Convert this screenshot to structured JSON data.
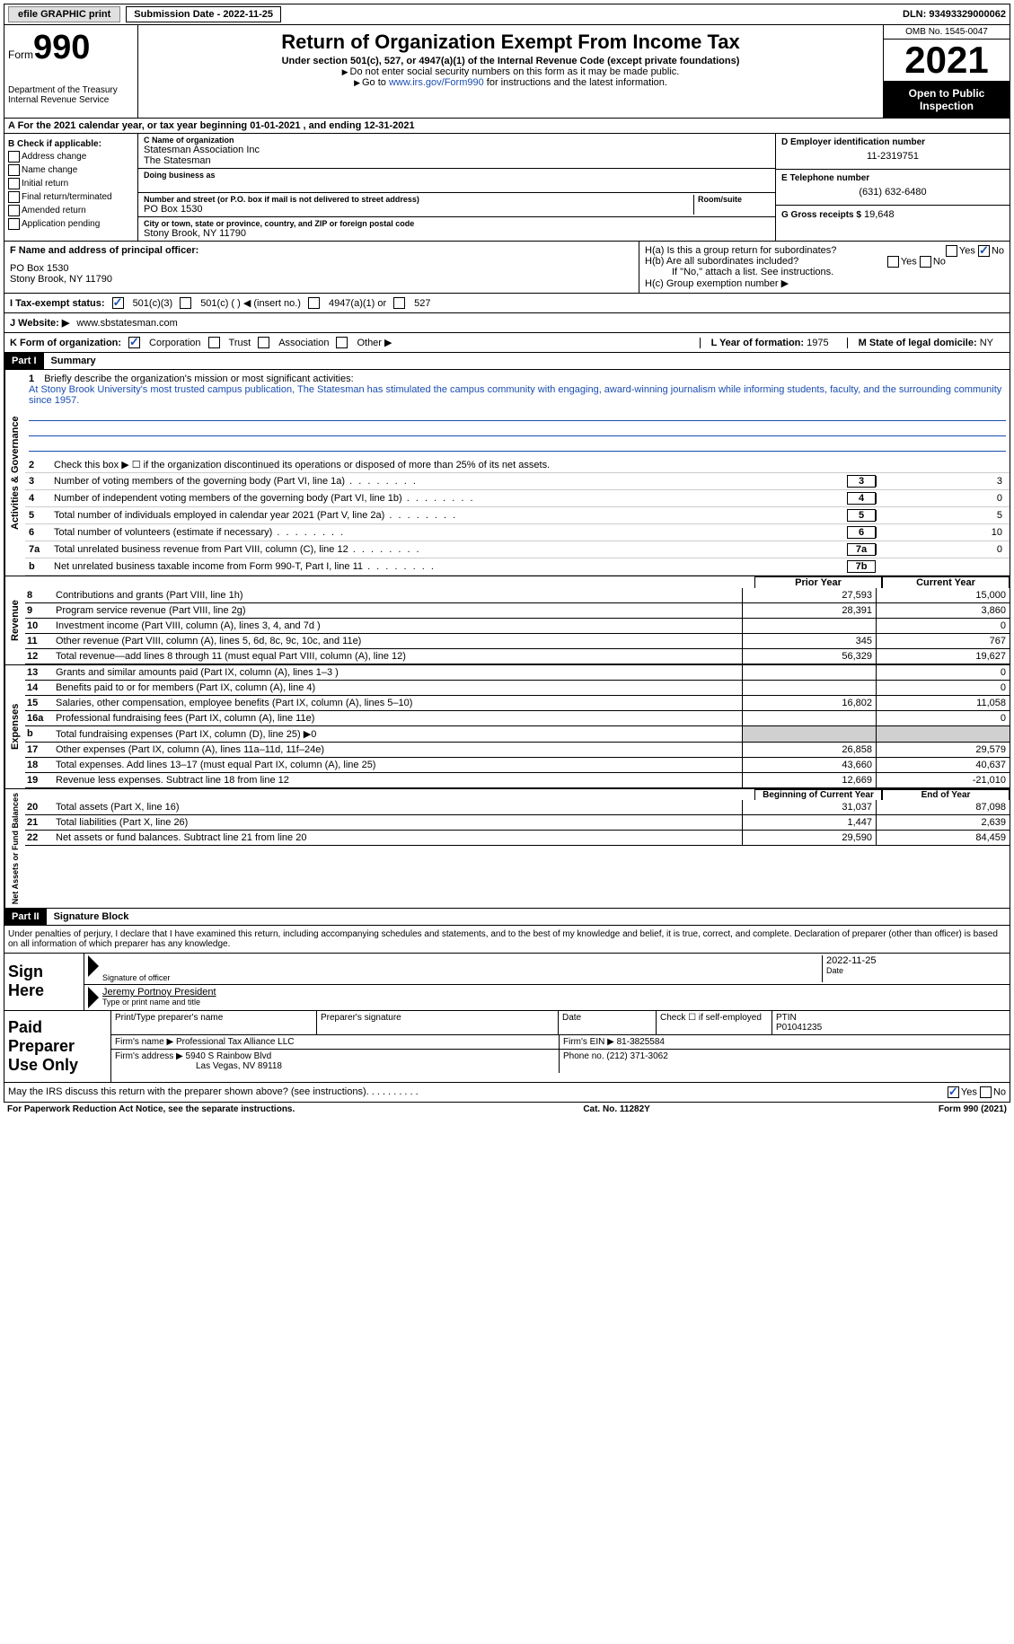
{
  "topbar": {
    "efile": "efile GRAPHIC print",
    "submission": "Submission Date - 2022-11-25",
    "dln": "DLN: 93493329000062"
  },
  "header": {
    "form_label": "Form",
    "form_num": "990",
    "dept": "Department of the Treasury",
    "irs": "Internal Revenue Service",
    "title": "Return of Organization Exempt From Income Tax",
    "subtitle": "Under section 501(c), 527, or 4947(a)(1) of the Internal Revenue Code (except private foundations)",
    "note1": "Do not enter social security numbers on this form as it may be made public.",
    "note2_pre": "Go to ",
    "note2_link": "www.irs.gov/Form990",
    "note2_post": " for instructions and the latest information.",
    "omb": "OMB No. 1545-0047",
    "year": "2021",
    "open": "Open to Public Inspection"
  },
  "section_a": "A For the 2021 calendar year, or tax year beginning 01-01-2021    , and ending 12-31-2021",
  "col_b": {
    "title": "B Check if applicable:",
    "items": [
      "Address change",
      "Name change",
      "Initial return",
      "Final return/terminated",
      "Amended return",
      "Application pending"
    ]
  },
  "col_c": {
    "name_label": "C Name of organization",
    "name1": "Statesman Association Inc",
    "name2": "The Statesman",
    "dba_label": "Doing business as",
    "addr_label": "Number and street (or P.O. box if mail is not delivered to street address)",
    "room_label": "Room/suite",
    "addr": "PO Box 1530",
    "city_label": "City or town, state or province, country, and ZIP or foreign postal code",
    "city": "Stony Brook, NY  11790"
  },
  "col_d": {
    "ein_label": "D Employer identification number",
    "ein": "11-2319751",
    "phone_label": "E Telephone number",
    "phone": "(631) 632-6480",
    "gross_label": "G Gross receipts $",
    "gross": "19,648"
  },
  "f": {
    "label": "F  Name and address of principal officer:",
    "line1": "PO Box 1530",
    "line2": "Stony Brook, NY  11790"
  },
  "h": {
    "ha": "H(a)  Is this a group return for subordinates?",
    "hb": "H(b)  Are all subordinates included?",
    "hb_note": "If \"No,\" attach a list. See instructions.",
    "hc": "H(c)  Group exemption number ▶"
  },
  "tax_status": {
    "label": "I   Tax-exempt status:",
    "opt1": "501(c)(3)",
    "opt2": "501(c) (   ) ◀ (insert no.)",
    "opt3": "4947(a)(1) or",
    "opt4": "527"
  },
  "website": {
    "label": "J  Website: ▶",
    "value": "www.sbstatesman.com"
  },
  "k": {
    "label": "K Form of organization:",
    "opts": [
      "Corporation",
      "Trust",
      "Association",
      "Other ▶"
    ],
    "l_label": "L Year of formation:",
    "l_val": "1975",
    "m_label": "M State of legal domicile:",
    "m_val": "NY"
  },
  "part1": {
    "header": "Part I",
    "title": "Summary"
  },
  "mission": {
    "num": "1",
    "label": "Briefly describe the organization's mission or most significant activities:",
    "text": "At Stony Brook University's most trusted campus publication, The Statesman has stimulated the campus community with engaging, award-winning journalism while informing students, faculty, and the surrounding community since 1957."
  },
  "gov_lines": [
    {
      "num": "2",
      "desc": "Check this box ▶ ☐  if the organization discontinued its operations or disposed of more than 25% of its net assets."
    },
    {
      "num": "3",
      "desc": "Number of voting members of the governing body (Part VI, line 1a)",
      "box": "3",
      "val": "3"
    },
    {
      "num": "4",
      "desc": "Number of independent voting members of the governing body (Part VI, line 1b)",
      "box": "4",
      "val": "0"
    },
    {
      "num": "5",
      "desc": "Total number of individuals employed in calendar year 2021 (Part V, line 2a)",
      "box": "5",
      "val": "5"
    },
    {
      "num": "6",
      "desc": "Total number of volunteers (estimate if necessary)",
      "box": "6",
      "val": "10"
    },
    {
      "num": "7a",
      "desc": "Total unrelated business revenue from Part VIII, column (C), line 12",
      "box": "7a",
      "val": "0"
    },
    {
      "num": "b",
      "desc": "Net unrelated business taxable income from Form 990-T, Part I, line 11",
      "box": "7b",
      "val": ""
    }
  ],
  "col_headers": {
    "prior": "Prior Year",
    "current": "Current Year"
  },
  "revenue": [
    {
      "num": "8",
      "desc": "Contributions and grants (Part VIII, line 1h)",
      "prior": "27,593",
      "current": "15,000"
    },
    {
      "num": "9",
      "desc": "Program service revenue (Part VIII, line 2g)",
      "prior": "28,391",
      "current": "3,860"
    },
    {
      "num": "10",
      "desc": "Investment income (Part VIII, column (A), lines 3, 4, and 7d )",
      "prior": "",
      "current": "0"
    },
    {
      "num": "11",
      "desc": "Other revenue (Part VIII, column (A), lines 5, 6d, 8c, 9c, 10c, and 11e)",
      "prior": "345",
      "current": "767"
    },
    {
      "num": "12",
      "desc": "Total revenue—add lines 8 through 11 (must equal Part VIII, column (A), line 12)",
      "prior": "56,329",
      "current": "19,627"
    }
  ],
  "expenses": [
    {
      "num": "13",
      "desc": "Grants and similar amounts paid (Part IX, column (A), lines 1–3 )",
      "prior": "",
      "current": "0"
    },
    {
      "num": "14",
      "desc": "Benefits paid to or for members (Part IX, column (A), line 4)",
      "prior": "",
      "current": "0"
    },
    {
      "num": "15",
      "desc": "Salaries, other compensation, employee benefits (Part IX, column (A), lines 5–10)",
      "prior": "16,802",
      "current": "11,058"
    },
    {
      "num": "16a",
      "desc": "Professional fundraising fees (Part IX, column (A), line 11e)",
      "prior": "",
      "current": "0"
    },
    {
      "num": "b",
      "desc": "Total fundraising expenses (Part IX, column (D), line 25) ▶0",
      "prior": "gray",
      "current": "gray"
    },
    {
      "num": "17",
      "desc": "Other expenses (Part IX, column (A), lines 11a–11d, 11f–24e)",
      "prior": "26,858",
      "current": "29,579"
    },
    {
      "num": "18",
      "desc": "Total expenses. Add lines 13–17 (must equal Part IX, column (A), line 25)",
      "prior": "43,660",
      "current": "40,637"
    },
    {
      "num": "19",
      "desc": "Revenue less expenses. Subtract line 18 from line 12",
      "prior": "12,669",
      "current": "-21,010"
    }
  ],
  "net_headers": {
    "prior": "Beginning of Current Year",
    "current": "End of Year"
  },
  "net": [
    {
      "num": "20",
      "desc": "Total assets (Part X, line 16)",
      "prior": "31,037",
      "current": "87,098"
    },
    {
      "num": "21",
      "desc": "Total liabilities (Part X, line 26)",
      "prior": "1,447",
      "current": "2,639"
    },
    {
      "num": "22",
      "desc": "Net assets or fund balances. Subtract line 21 from line 20",
      "prior": "29,590",
      "current": "84,459"
    }
  ],
  "part2": {
    "header": "Part II",
    "title": "Signature Block",
    "declaration": "Under penalties of perjury, I declare that I have examined this return, including accompanying schedules and statements, and to the best of my knowledge and belief, it is true, correct, and complete. Declaration of preparer (other than officer) is based on all information of which preparer has any knowledge."
  },
  "sign": {
    "label": "Sign Here",
    "sig_label": "Signature of officer",
    "date": "2022-11-25",
    "date_label": "Date",
    "name": "Jeremy Portnoy  President",
    "name_label": "Type or print name and title"
  },
  "preparer": {
    "label": "Paid Preparer Use Only",
    "name_label": "Print/Type preparer's name",
    "sig_label": "Preparer's signature",
    "date_label": "Date",
    "check_label": "Check ☐ if self-employed",
    "ptin_label": "PTIN",
    "ptin": "P01041235",
    "firm_label": "Firm's name   ▶",
    "firm": "Professional Tax Alliance LLC",
    "ein_label": "Firm's EIN ▶",
    "ein": "81-3825584",
    "addr_label": "Firm's address ▶",
    "addr1": "5940 S Rainbow Blvd",
    "addr2": "Las Vegas, NV  89118",
    "phone_label": "Phone no.",
    "phone": "(212) 371-3062"
  },
  "discuss": "May the IRS discuss this return with the preparer shown above? (see instructions)",
  "footer": {
    "left": "For Paperwork Reduction Act Notice, see the separate instructions.",
    "mid": "Cat. No. 11282Y",
    "right": "Form 990 (2021)"
  },
  "vert": {
    "gov": "Activities & Governance",
    "rev": "Revenue",
    "exp": "Expenses",
    "net": "Net Assets or Fund Balances"
  }
}
